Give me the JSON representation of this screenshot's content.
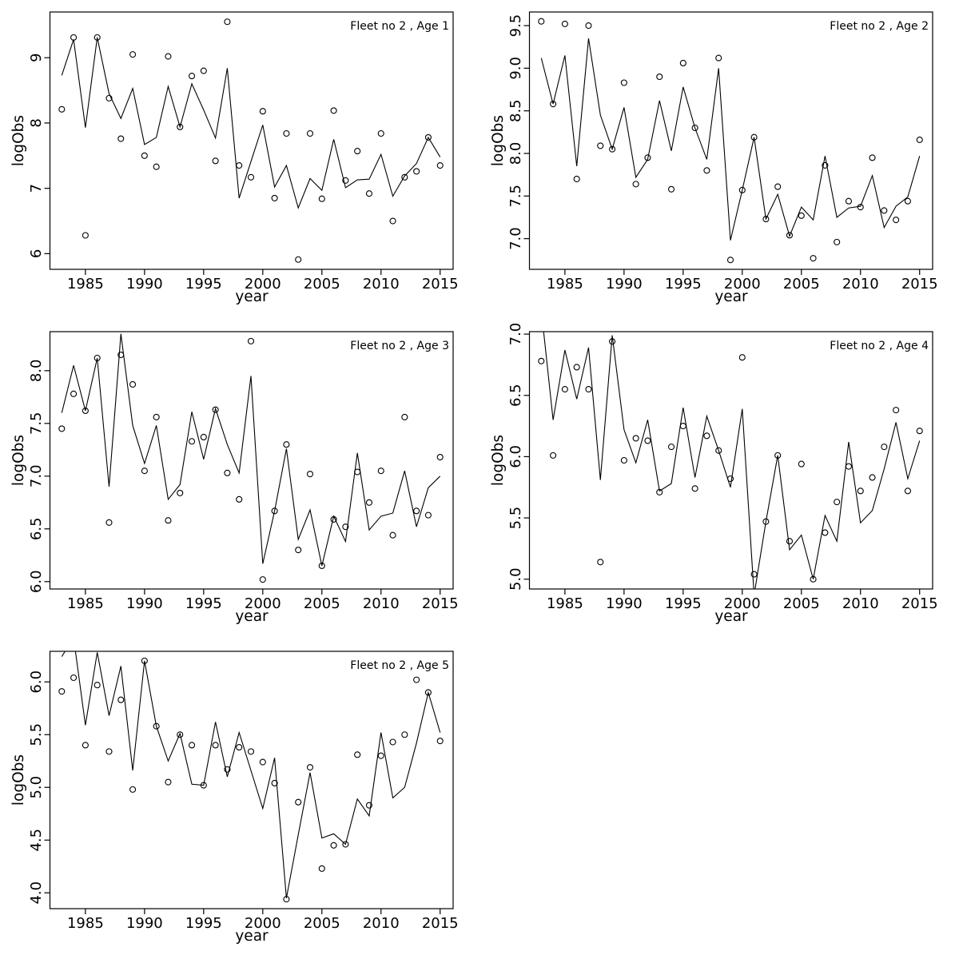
{
  "figure": {
    "background": "#ffffff",
    "foreground": "#000000",
    "grid": "off",
    "legend": "none"
  },
  "chart_data": {
    "type": "line+scatter",
    "x_label": "year",
    "y_label": "logObs",
    "marker": "open-circle",
    "x": [
      1983,
      1984,
      1985,
      1986,
      1987,
      1988,
      1989,
      1990,
      1991,
      1992,
      1993,
      1994,
      1995,
      1996,
      1997,
      1998,
      1999,
      2000,
      2001,
      2002,
      2003,
      2004,
      2005,
      2006,
      2007,
      2008,
      2009,
      2010,
      2011,
      2012,
      2013,
      2014,
      2015
    ],
    "xlim": [
      1982.0,
      2016.1
    ],
    "x_ticks": [
      1985,
      1990,
      1995,
      2000,
      2005,
      2010,
      2015
    ],
    "panels": [
      {
        "title": "Fleet no 2 , Age 1",
        "ylim": [
          5.76,
          9.7
        ],
        "y_ticks": [
          "6",
          "7",
          "8",
          "9"
        ],
        "series": [
          {
            "name": "observed",
            "values": [
              8.21,
              9.31,
              6.28,
              9.31,
              8.38,
              7.76,
              9.05,
              7.5,
              7.33,
              9.02,
              7.94,
              8.72,
              8.8,
              7.42,
              9.55,
              7.35,
              7.17,
              8.18,
              6.85,
              7.84,
              5.91,
              7.84,
              6.84,
              8.19,
              7.12,
              7.57,
              6.92,
              7.84,
              6.5,
              7.17,
              7.26,
              7.78,
              7.35
            ]
          },
          {
            "name": "fitted",
            "values": [
              8.73,
              9.28,
              7.93,
              9.31,
              8.45,
              8.07,
              8.53,
              7.67,
              7.78,
              8.56,
              7.94,
              8.6,
              8.2,
              7.77,
              8.84,
              6.85,
              7.41,
              7.97,
              7.02,
              7.35,
              6.7,
              7.15,
              6.97,
              7.75,
              7.01,
              7.13,
              7.14,
              7.52,
              6.88,
              7.19,
              7.38,
              7.78,
              7.48
            ]
          }
        ]
      },
      {
        "title": "Fleet no 2 , Age 2",
        "ylim": [
          6.64,
          9.66
        ],
        "y_ticks": [
          "7.0",
          "7.5",
          "8.0",
          "8.5",
          "9.0",
          "9.5"
        ],
        "series": [
          {
            "name": "observed",
            "values": [
              9.55,
              8.58,
              9.52,
              7.7,
              9.5,
              8.09,
              8.05,
              8.83,
              7.64,
              7.95,
              8.9,
              7.58,
              9.06,
              8.3,
              7.8,
              9.12,
              6.75,
              7.57,
              8.19,
              7.23,
              7.61,
              7.04,
              7.27,
              6.77,
              7.86,
              6.96,
              7.44,
              7.37,
              7.95,
              7.33,
              7.22,
              7.44,
              8.16
            ]
          },
          {
            "name": "fitted",
            "values": [
              9.12,
              8.58,
              9.15,
              7.85,
              9.35,
              8.45,
              8.05,
              8.54,
              7.72,
              7.93,
              8.62,
              8.03,
              8.78,
              8.3,
              7.93,
              9.0,
              6.98,
              7.57,
              8.19,
              7.23,
              7.52,
              7.03,
              7.37,
              7.22,
              7.97,
              7.25,
              7.36,
              7.38,
              7.74,
              7.13,
              7.38,
              7.49,
              7.97
            ]
          }
        ]
      },
      {
        "title": "Fleet no 2 , Age 3",
        "ylim": [
          5.93,
          8.37
        ],
        "y_ticks": [
          "6.0",
          "6.5",
          "7.0",
          "7.5",
          "8.0"
        ],
        "series": [
          {
            "name": "observed",
            "values": [
              7.45,
              7.78,
              7.62,
              8.12,
              6.56,
              8.15,
              7.87,
              7.05,
              7.56,
              6.58,
              6.84,
              7.33,
              7.37,
              7.63,
              7.03,
              6.78,
              8.28,
              6.02,
              6.67,
              7.3,
              6.3,
              7.02,
              6.15,
              6.59,
              6.52,
              7.04,
              6.75,
              7.05,
              6.44,
              7.56,
              6.67,
              6.63,
              7.18
            ]
          },
          {
            "name": "fitted",
            "values": [
              7.6,
              8.05,
              7.62,
              8.12,
              6.9,
              8.35,
              7.48,
              7.12,
              7.48,
              6.78,
              6.92,
              7.61,
              7.16,
              7.64,
              7.3,
              7.03,
              7.95,
              6.17,
              6.67,
              7.26,
              6.4,
              6.68,
              6.15,
              6.62,
              6.38,
              7.22,
              6.49,
              6.62,
              6.65,
              7.05,
              6.52,
              6.89,
              7.0
            ]
          }
        ]
      },
      {
        "title": "Fleet no 2 , Age 4",
        "ylim": [
          4.92,
          7.02
        ],
        "y_ticks": [
          "5.0",
          "5.5",
          "6.0",
          "6.5",
          "7.0"
        ],
        "series": [
          {
            "name": "observed",
            "values": [
              6.78,
              6.01,
              6.55,
              6.73,
              6.55,
              5.14,
              6.94,
              5.97,
              6.15,
              6.13,
              5.71,
              6.08,
              6.25,
              5.74,
              6.17,
              6.05,
              5.82,
              6.81,
              5.04,
              5.47,
              6.01,
              5.31,
              5.94,
              5.0,
              5.38,
              5.63,
              5.92,
              5.72,
              5.83,
              6.08,
              6.38,
              5.72,
              6.21
            ]
          },
          {
            "name": "fitted",
            "values": [
              7.2,
              6.3,
              6.87,
              6.47,
              6.89,
              5.81,
              6.99,
              6.22,
              5.95,
              6.3,
              5.72,
              5.78,
              6.4,
              5.83,
              6.33,
              6.05,
              5.75,
              6.39,
              4.87,
              5.47,
              6.01,
              5.24,
              5.36,
              5.0,
              5.52,
              5.31,
              6.12,
              5.46,
              5.56,
              5.9,
              6.28,
              5.82,
              6.13
            ]
          }
        ]
      },
      {
        "title": "Fleet no 2 , Age 5",
        "ylim": [
          3.85,
          6.29
        ],
        "y_ticks": [
          "4.0",
          "4.5",
          "5.0",
          "5.5",
          "6.0"
        ],
        "series": [
          {
            "name": "observed",
            "values": [
              5.91,
              6.04,
              5.4,
              5.97,
              5.34,
              5.83,
              4.98,
              6.2,
              5.58,
              5.05,
              5.5,
              5.4,
              5.02,
              5.4,
              5.17,
              5.38,
              5.34,
              5.24,
              5.04,
              3.94,
              4.86,
              5.19,
              4.23,
              4.45,
              4.46,
              5.31,
              4.83,
              5.3,
              5.43,
              5.5,
              6.02,
              5.9,
              5.44
            ]
          },
          {
            "name": "fitted",
            "values": [
              6.24,
              6.42,
              5.59,
              6.28,
              5.68,
              6.15,
              5.16,
              6.2,
              5.58,
              5.25,
              5.51,
              5.03,
              5.02,
              5.62,
              5.1,
              5.52,
              5.16,
              4.8,
              5.28,
              3.95,
              4.55,
              5.14,
              4.52,
              4.56,
              4.46,
              4.89,
              4.73,
              5.52,
              4.9,
              5.0,
              5.42,
              5.9,
              5.52
            ]
          }
        ]
      }
    ]
  }
}
